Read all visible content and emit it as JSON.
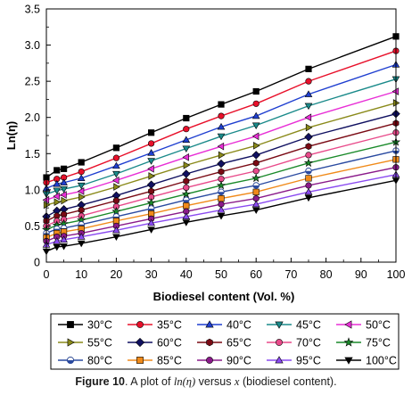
{
  "chart_data": {
    "type": "line",
    "xlabel": "Biodiesel content (Vol. %)",
    "ylabel": "Ln(η)",
    "xlim": [
      0,
      100
    ],
    "ylim": [
      0,
      3.5
    ],
    "xticks": [
      0,
      10,
      20,
      30,
      40,
      50,
      60,
      70,
      80,
      90,
      100
    ],
    "yticks": [
      0,
      0.5,
      1.0,
      1.5,
      2.0,
      2.5,
      3.0,
      3.5
    ],
    "xtick_labels": [
      "0",
      "10",
      "20",
      "30",
      "40",
      "50",
      "60",
      "70",
      "80",
      "90",
      "100"
    ],
    "ytick_labels": [
      "0",
      "0.5",
      "1.0",
      "1.5",
      "2.0",
      "2.5",
      "3.0",
      "3.5"
    ],
    "grid": false,
    "legend_position": "bottom",
    "x": [
      0,
      3,
      5,
      10,
      20,
      30,
      40,
      50,
      60,
      75,
      100
    ],
    "series": [
      {
        "name": "30°C",
        "color": "#000000",
        "marker": "square",
        "values": [
          1.17,
          1.27,
          1.29,
          1.38,
          1.58,
          1.79,
          1.99,
          2.18,
          2.36,
          2.67,
          3.12
        ]
      },
      {
        "name": "35°C",
        "color": "#e8102a",
        "marker": "circle",
        "values": [
          1.1,
          1.15,
          1.17,
          1.25,
          1.44,
          1.64,
          1.84,
          2.02,
          2.19,
          2.5,
          2.92
        ]
      },
      {
        "name": "40°C",
        "color": "#1f3fd0",
        "marker": "triangle-up",
        "values": [
          1.02,
          1.08,
          1.1,
          1.16,
          1.33,
          1.51,
          1.69,
          1.87,
          2.02,
          2.32,
          2.73
        ]
      },
      {
        "name": "45°C",
        "color": "#1a8a8a",
        "marker": "triangle-down",
        "values": [
          0.94,
          0.99,
          1.01,
          1.06,
          1.22,
          1.4,
          1.57,
          1.74,
          1.89,
          2.16,
          2.53
        ]
      },
      {
        "name": "50°C",
        "color": "#e82fd6",
        "marker": "triangle-left",
        "values": [
          0.86,
          0.91,
          0.93,
          0.98,
          1.13,
          1.29,
          1.45,
          1.6,
          1.74,
          2.0,
          2.36
        ]
      },
      {
        "name": "55°C",
        "color": "#8a8a1a",
        "marker": "triangle-right",
        "values": [
          0.79,
          0.83,
          0.85,
          0.9,
          1.04,
          1.19,
          1.34,
          1.48,
          1.61,
          1.86,
          2.2
        ]
      },
      {
        "name": "60°C",
        "color": "#101060",
        "marker": "diamond",
        "values": [
          0.63,
          0.71,
          0.73,
          0.79,
          0.92,
          1.07,
          1.22,
          1.36,
          1.48,
          1.73,
          2.05
        ]
      },
      {
        "name": "65°C",
        "color": "#7a0a14",
        "marker": "hexagon",
        "values": [
          0.57,
          0.64,
          0.66,
          0.72,
          0.85,
          0.98,
          1.12,
          1.25,
          1.37,
          1.6,
          1.92
        ]
      },
      {
        "name": "70°C",
        "color": "#e84a8a",
        "marker": "circle",
        "values": [
          0.5,
          0.57,
          0.59,
          0.64,
          0.77,
          0.9,
          1.03,
          1.15,
          1.26,
          1.48,
          1.79
        ]
      },
      {
        "name": "75°C",
        "color": "#1a8a2a",
        "marker": "star",
        "values": [
          0.45,
          0.51,
          0.53,
          0.58,
          0.7,
          0.82,
          0.94,
          1.06,
          1.16,
          1.37,
          1.66
        ]
      },
      {
        "name": "80°C",
        "color": "#2a4aa0",
        "marker": "half-circle",
        "values": [
          0.4,
          0.46,
          0.47,
          0.52,
          0.63,
          0.74,
          0.86,
          0.97,
          1.06,
          1.26,
          1.54
        ]
      },
      {
        "name": "85°C",
        "color": "#f08a1a",
        "marker": "square",
        "values": [
          0.34,
          0.4,
          0.42,
          0.46,
          0.57,
          0.67,
          0.78,
          0.88,
          0.97,
          1.16,
          1.42
        ]
      },
      {
        "name": "90°C",
        "color": "#8a1a8a",
        "marker": "circle",
        "values": [
          0.29,
          0.35,
          0.36,
          0.4,
          0.5,
          0.6,
          0.7,
          0.8,
          0.88,
          1.06,
          1.31
        ]
      },
      {
        "name": "95°C",
        "color": "#8a4af0",
        "marker": "triangle-up",
        "values": [
          0.24,
          0.29,
          0.31,
          0.35,
          0.44,
          0.54,
          0.63,
          0.72,
          0.8,
          0.97,
          1.21
        ]
      },
      {
        "name": "100°C",
        "color": "#000000",
        "marker": "triangle-down",
        "values": [
          0.15,
          0.21,
          0.22,
          0.26,
          0.35,
          0.45,
          0.55,
          0.64,
          0.72,
          0.89,
          1.13
        ]
      }
    ]
  },
  "caption": {
    "label": "Figure 10",
    "text_before": ". A plot of ",
    "expr1": "ln",
    "expr1_arg": "(η)",
    "text_mid": " versus ",
    "expr2": "x",
    "text_after": " (biodiesel content)."
  }
}
